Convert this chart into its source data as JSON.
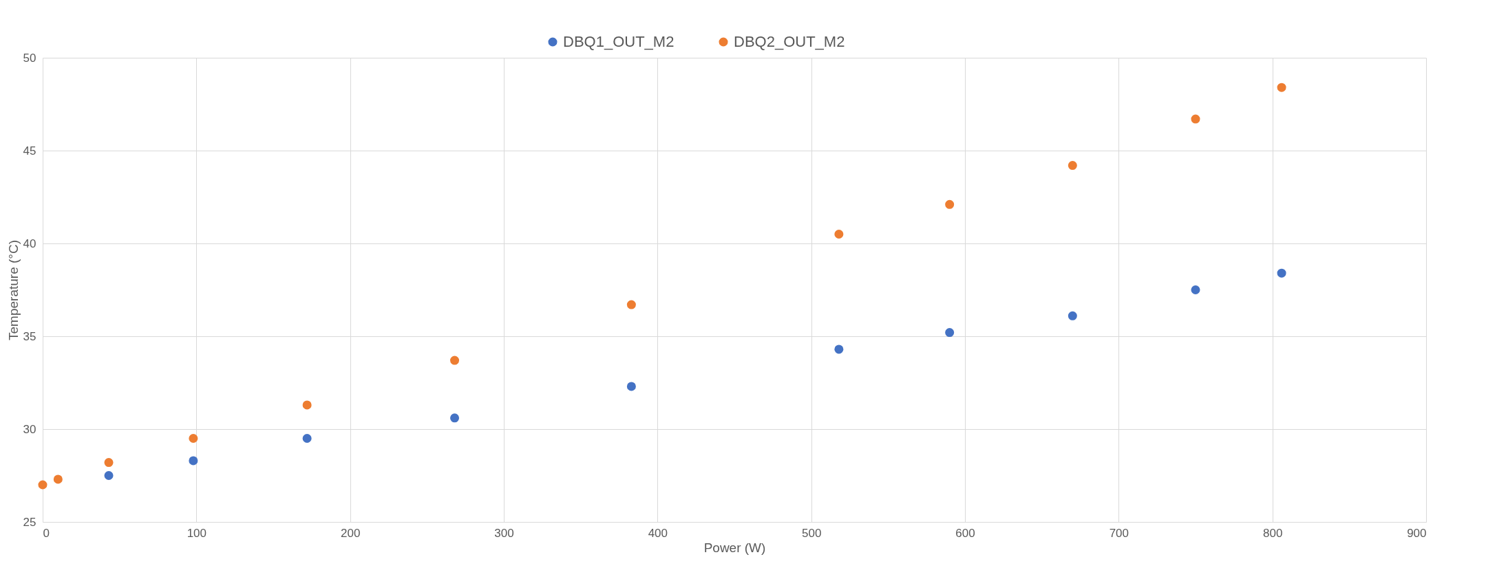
{
  "chart_data": {
    "type": "scatter",
    "xlabel": "Power (W)",
    "ylabel": "Temperature (°C)",
    "x": [
      0,
      10,
      43,
      98,
      172,
      268,
      383,
      518,
      590,
      670,
      750,
      806
    ],
    "series": [
      {
        "name": "DBQ1_OUT_M2",
        "color": "#4472c4",
        "values": [
          null,
          null,
          27.5,
          28.3,
          29.5,
          30.6,
          32.3,
          34.3,
          35.2,
          36.1,
          37.5,
          38.4
        ]
      },
      {
        "name": "DBQ2_OUT_M2",
        "color": "#ed7d31",
        "values": [
          27.0,
          27.3,
          28.2,
          29.5,
          31.3,
          33.7,
          36.7,
          40.5,
          42.1,
          44.2,
          46.7,
          48.4
        ]
      }
    ],
    "xlim": [
      0,
      900
    ],
    "xticks": [
      0,
      100,
      200,
      300,
      400,
      500,
      600,
      700,
      800,
      900
    ],
    "ylim": [
      25,
      50
    ],
    "yticks": [
      25,
      30,
      35,
      40,
      45,
      50
    ],
    "grid": true,
    "legend": "top",
    "marker": "circle"
  }
}
